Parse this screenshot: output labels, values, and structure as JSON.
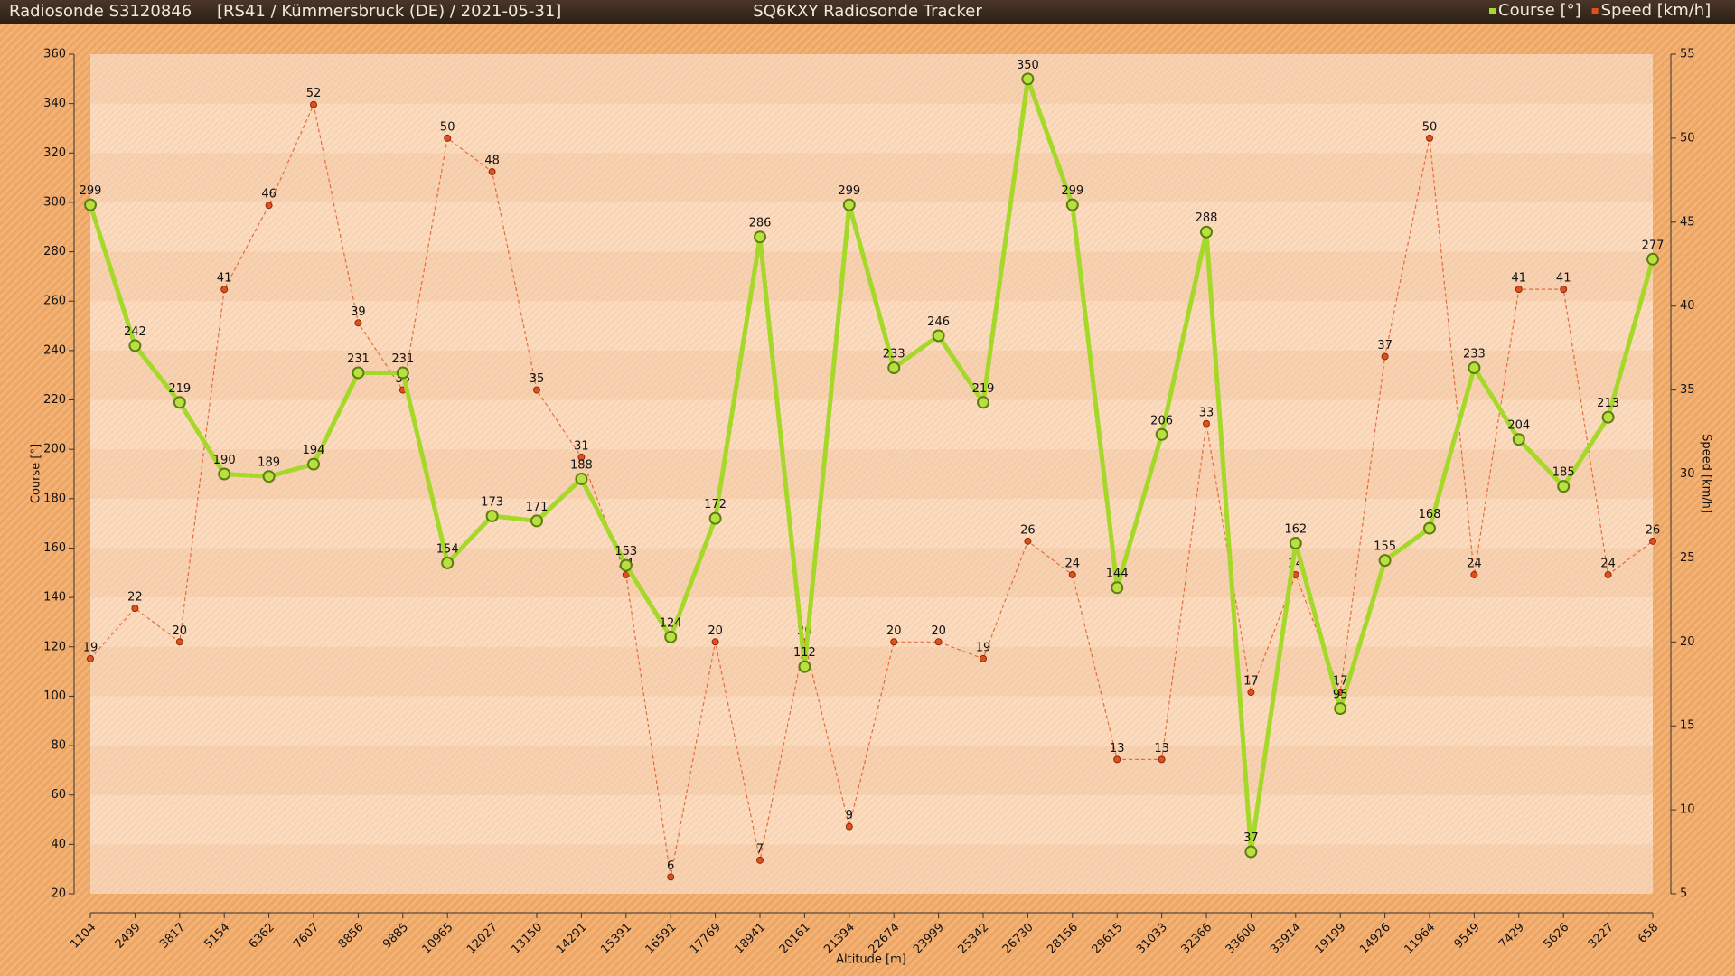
{
  "chart_data": {
    "type": "line",
    "title": "SQ6KXY Radiosonde Tracker",
    "subtitle": "Radiosonde S3120846",
    "annotation": "[RS41 / Kümmersbruck (DE) / 2021-05-31]",
    "x_label": "Altitude [m]",
    "y_label": "Course [°]",
    "y2_label": "Speed [km/h]",
    "legend_position": "top-right",
    "categories": [
      "1104",
      "2499",
      "3817",
      "5154",
      "6362",
      "7607",
      "8856",
      "9885",
      "10965",
      "12027",
      "13150",
      "14291",
      "15391",
      "16591",
      "17769",
      "18941",
      "20161",
      "21394",
      "22674",
      "23999",
      "25342",
      "26730",
      "28156",
      "29615",
      "31033",
      "32366",
      "33600",
      "33914",
      "19199",
      "14926",
      "11964",
      "9549",
      "7429",
      "5626",
      "3227",
      "658"
    ],
    "series": [
      {
        "name": "Course [°]",
        "color": "#a6d82a",
        "axis": "y",
        "values": [
          299,
          242,
          219,
          190,
          189,
          194,
          231,
          231,
          154,
          173,
          171,
          188,
          153,
          124,
          172,
          286,
          112,
          299,
          233,
          246,
          219,
          350,
          299,
          144,
          206,
          288,
          37,
          162,
          95,
          155,
          168,
          233,
          204,
          185,
          213,
          277
        ]
      },
      {
        "name": "Speed [km/h]",
        "color": "#e0501e",
        "axis": "y2",
        "values": [
          19,
          22,
          20,
          41,
          46,
          52,
          39,
          35,
          50,
          48,
          35,
          31,
          24,
          6,
          20,
          7,
          20,
          9,
          20,
          20,
          19,
          26,
          24,
          13,
          13,
          33,
          17,
          24,
          17,
          37,
          50,
          24,
          41,
          41,
          24,
          26
        ]
      }
    ],
    "ylim": [
      20,
      360
    ],
    "yticks": [
      20,
      40,
      60,
      80,
      100,
      120,
      140,
      160,
      180,
      200,
      220,
      240,
      260,
      280,
      300,
      320,
      340,
      360
    ],
    "y2lim": [
      5,
      55
    ],
    "y2ticks": [
      5,
      10,
      15,
      20,
      25,
      30,
      35,
      40,
      45,
      50,
      55
    ]
  }
}
